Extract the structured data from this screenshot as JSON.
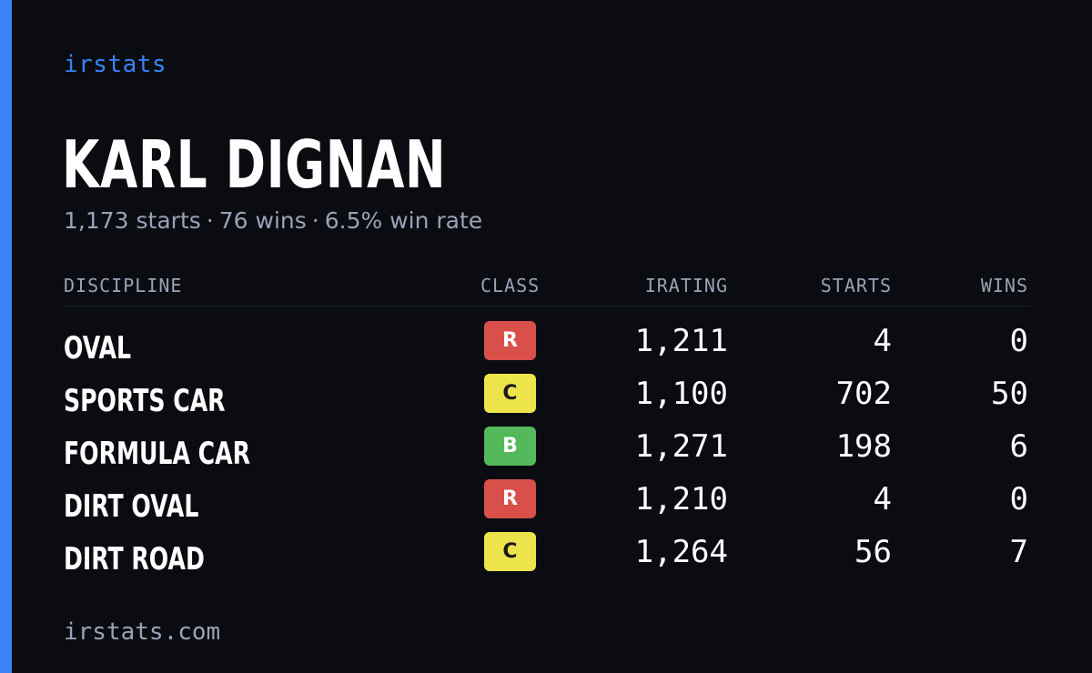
{
  "brand": "irstats",
  "driver": {
    "name": "KARL DIGNAN",
    "starts_text": "1,173 starts",
    "wins_text": "76 wins",
    "winrate_text": "6.5% win rate",
    "separator": "·"
  },
  "table": {
    "headers": {
      "discipline": "DISCIPLINE",
      "class": "CLASS",
      "irating": "IRATING",
      "starts": "STARTS",
      "wins": "WINS"
    },
    "rows": [
      {
        "discipline": "OVAL",
        "class": "R",
        "irating": "1,211",
        "starts": "4",
        "wins": "0"
      },
      {
        "discipline": "SPORTS CAR",
        "class": "C",
        "irating": "1,100",
        "starts": "702",
        "wins": "50"
      },
      {
        "discipline": "FORMULA CAR",
        "class": "B",
        "irating": "1,271",
        "starts": "198",
        "wins": "6"
      },
      {
        "discipline": "DIRT OVAL",
        "class": "R",
        "irating": "1,210",
        "starts": "4",
        "wins": "0"
      },
      {
        "discipline": "DIRT ROAD",
        "class": "C",
        "irating": "1,264",
        "starts": "56",
        "wins": "7"
      }
    ]
  },
  "footer": "irstats.com",
  "colors": {
    "background": "#0a0c12",
    "accent": "#3b82f6",
    "class_r": "#d9504b",
    "class_c": "#ede44b",
    "class_b": "#54b95a",
    "muted_text": "#9aa3b5"
  }
}
